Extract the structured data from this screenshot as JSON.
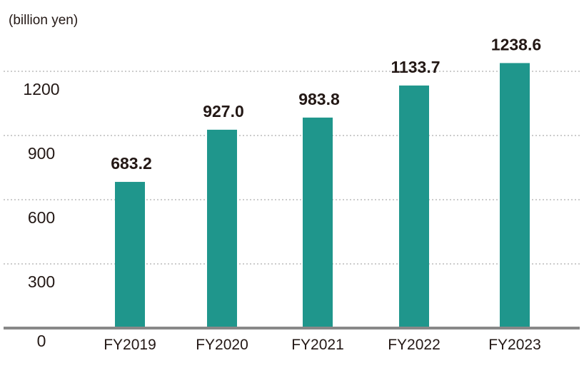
{
  "chart_data": {
    "type": "bar",
    "unit_label": "(billion yen)",
    "categories": [
      "FY2019",
      "FY2020",
      "FY2021",
      "FY2022",
      "FY2023"
    ],
    "values": [
      683.2,
      927.0,
      983.8,
      1133.7,
      1238.6
    ],
    "value_labels": [
      "683.2",
      "927.0",
      "983.8",
      "1133.7",
      "1238.6"
    ],
    "yticks": [
      0,
      300,
      600,
      900,
      1200
    ],
    "ytick_labels": [
      "0",
      "300",
      "600",
      "900",
      "1200"
    ],
    "ylim": [
      0,
      1500
    ],
    "grid": "horizontal dotted",
    "bar_color": "#1f968c",
    "axis_color": "#888888",
    "grid_color": "#999999"
  }
}
